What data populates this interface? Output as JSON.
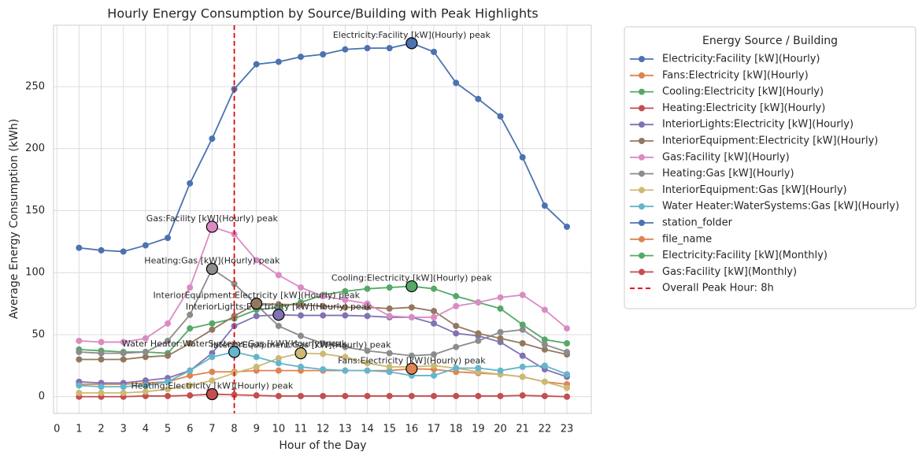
{
  "chart_data": {
    "type": "line",
    "title": "Hourly Energy Consumption by Source/Building with Peak Highlights",
    "x_label": "Hour of the Day",
    "y_label": "Average Energy Consumption (kWh)",
    "x": [
      1,
      2,
      3,
      4,
      5,
      6,
      7,
      8,
      9,
      10,
      11,
      12,
      13,
      14,
      15,
      16,
      17,
      18,
      19,
      20,
      21,
      22,
      23
    ],
    "xlim": [
      -0.15,
      24.1
    ],
    "xticks": [
      0,
      1,
      2,
      3,
      4,
      5,
      6,
      7,
      8,
      9,
      10,
      11,
      12,
      13,
      14,
      15,
      16,
      17,
      18,
      19,
      20,
      21,
      22,
      23
    ],
    "ylim": [
      -13.5,
      299.5
    ],
    "yticks": [
      0,
      50,
      100,
      150,
      200,
      250
    ],
    "grid": true,
    "legend_title": "Energy Source / Building",
    "legend_position": "outside right",
    "series": [
      {
        "name": "Electricity:Facility [kW](Hourly)",
        "color": "#4c72b0",
        "peak_label": "Electricity:Facility [kW](Hourly) peak",
        "values": [
          120,
          118,
          117,
          122,
          128,
          172,
          208,
          248,
          268,
          270,
          274,
          276,
          280,
          281,
          281,
          285,
          278,
          253,
          240,
          226,
          193,
          154,
          137
        ]
      },
      {
        "name": "Fans:Electricity [kW](Hourly)",
        "color": "#dd8452",
        "peak_label": "Fans:Electricity [kW](Hourly) peak",
        "values": [
          10,
          10,
          10,
          11,
          12,
          17,
          20,
          20,
          21,
          21,
          21,
          21,
          21,
          21,
          21,
          22.5,
          22,
          20,
          19,
          18,
          16,
          12,
          10
        ]
      },
      {
        "name": "Cooling:Electricity [kW](Hourly)",
        "color": "#55a868",
        "peak_label": "Cooling:Electricity [kW](Hourly) peak",
        "values": [
          38,
          37,
          36,
          36,
          35,
          55,
          59,
          63,
          70,
          72,
          76,
          82,
          85,
          87,
          88,
          89,
          87,
          81,
          76,
          71,
          58,
          46,
          43
        ]
      },
      {
        "name": "Heating:Electricity [kW](Hourly)",
        "color": "#c44e52",
        "peak_label": "Heating:Electricity [kW](Hourly) peak",
        "values": [
          0,
          0,
          0,
          0.5,
          0.5,
          1,
          2,
          1.5,
          1,
          0.5,
          0.5,
          0.5,
          0.5,
          0.5,
          0.5,
          0.5,
          0.5,
          0.5,
          0.5,
          0.5,
          1,
          0.5,
          0
        ]
      },
      {
        "name": "InteriorLights:Electricity [kW](Hourly)",
        "color": "#8172b3",
        "peak_label": "InteriorLights:Electricity [kW](Hourly) peak",
        "values": [
          12,
          11,
          11,
          13,
          15,
          21,
          35,
          57,
          65,
          66,
          65.5,
          65.5,
          65.5,
          65,
          64,
          64,
          59,
          51,
          49,
          44,
          33,
          22,
          16
        ]
      },
      {
        "name": "InteriorEquipment:Electricity [kW](Hourly)",
        "color": "#937860",
        "peak_label": "InteriorEquipment:Electricity [kW](Hourly) peak",
        "values": [
          30,
          30,
          30,
          32,
          33,
          43,
          54,
          65,
          75,
          74.5,
          74,
          73,
          72,
          72,
          71,
          72,
          69,
          57,
          51,
          47,
          43,
          38,
          34
        ]
      },
      {
        "name": "Gas:Facility [kW](Hourly)",
        "color": "#da8bc3",
        "peak_label": "Gas:Facility [kW](Hourly) peak",
        "values": [
          45,
          44,
          44,
          47,
          59,
          88,
          137,
          131,
          110,
          98,
          88,
          81,
          78,
          75,
          65,
          64,
          64,
          73,
          76,
          80,
          82,
          70,
          55
        ]
      },
      {
        "name": "Heating:Gas [kW](Hourly)",
        "color": "#8c8c8c",
        "peak_label": "Heating:Gas [kW](Hourly) peak",
        "values": [
          36,
          35,
          35,
          36,
          45,
          66,
          103,
          91,
          74,
          57,
          49,
          43,
          40,
          37,
          35,
          33,
          34,
          40,
          45,
          52,
          54,
          42,
          36
        ]
      },
      {
        "name": "InteriorEquipment:Gas [kW](Hourly)",
        "color": "#ccb974",
        "peak_label": "InteriorEquipment:Gas [kW](Hourly) peak",
        "values": [
          3,
          3,
          3,
          4,
          6,
          9,
          13,
          19,
          24,
          31,
          35,
          34.5,
          32,
          27,
          24,
          24,
          25,
          23,
          20,
          18,
          16,
          12,
          7
        ]
      },
      {
        "name": "Water Heater:WaterSystems:Gas [kW](Hourly)",
        "color": "#64b5cd",
        "peak_label": "Water Heater:WaterSystems:Gas [kW](Hourly) peak",
        "values": [
          9,
          8,
          8,
          9,
          12,
          21,
          32,
          36,
          32,
          27,
          24,
          22,
          21,
          21,
          20,
          17,
          17,
          23,
          23,
          21,
          24,
          25,
          18
        ]
      },
      {
        "name": "station_folder",
        "color": "#4c72b0"
      },
      {
        "name": "file_name",
        "color": "#dd8452"
      },
      {
        "name": "Electricity:Facility [kW](Monthly)",
        "color": "#55a868"
      },
      {
        "name": "Gas:Facility [kW](Monthly)",
        "color": "#c44e52"
      }
    ],
    "vline": {
      "x": 8,
      "label": "Overall Peak Hour: 8h",
      "color": "#e8000b"
    }
  }
}
